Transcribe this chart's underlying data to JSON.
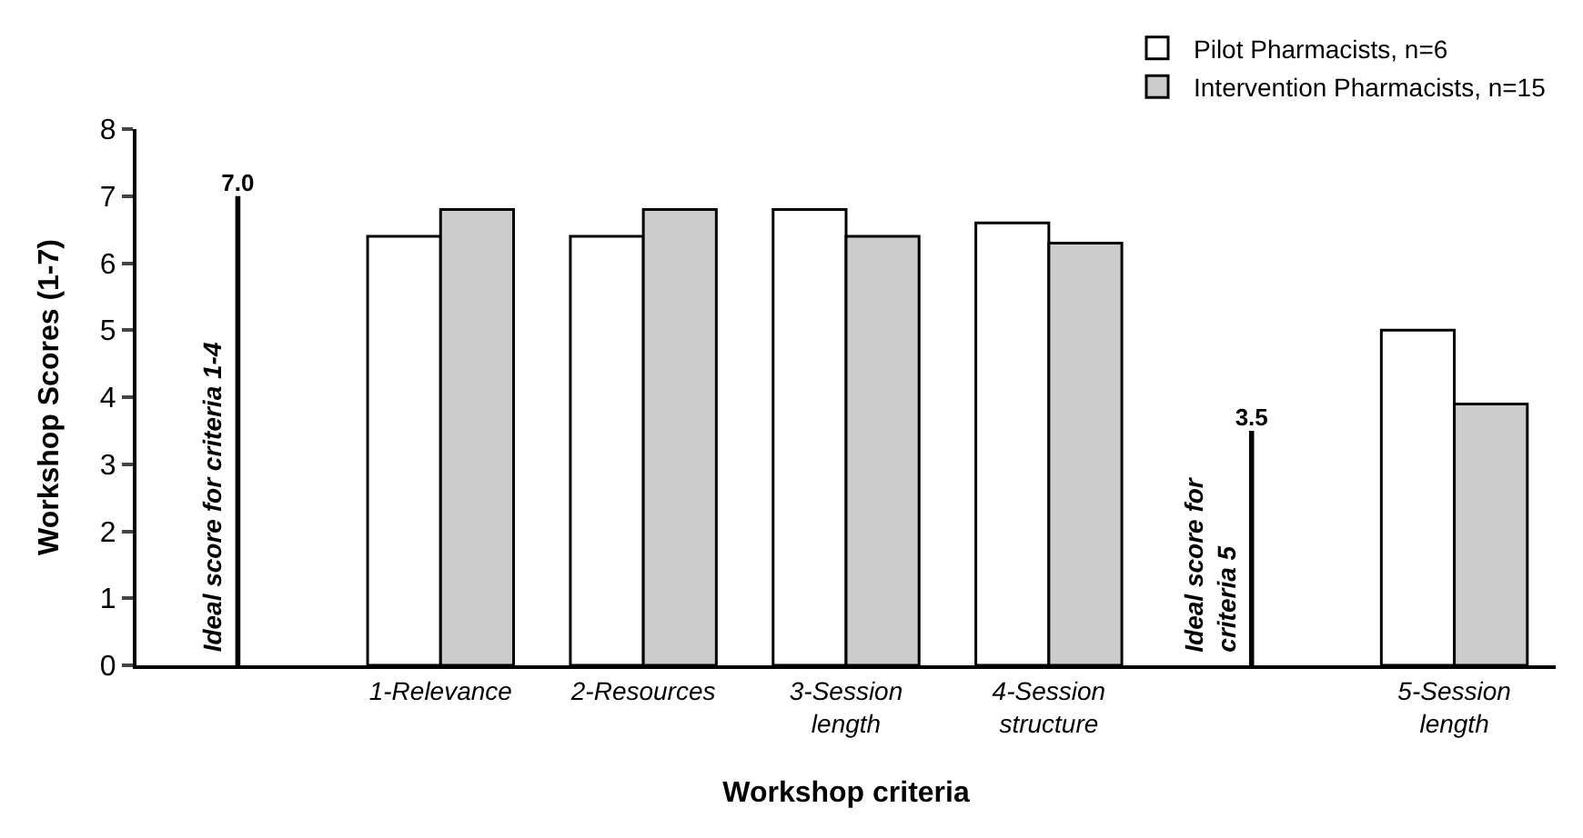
{
  "chart_data": {
    "type": "bar",
    "xlabel": "Workshop criteria",
    "ylabel": "Workshop Scores (1-7)",
    "categories": [
      null,
      "1-Relevance",
      "2-Resources",
      "3-Session length",
      "4-Session structure",
      null,
      "5-Session length"
    ],
    "series": [
      {
        "name": "Pilot Pharmacists, n=6",
        "color": "#ffffff",
        "values": [
          null,
          6.4,
          6.4,
          6.8,
          6.6,
          null,
          5.0
        ]
      },
      {
        "name": "Intervention Pharmacists, n=15",
        "color": "#cccccc",
        "values": [
          null,
          6.8,
          6.8,
          6.4,
          6.3,
          null,
          3.9
        ]
      },
      {
        "color": "#000000",
        "values": [
          7.0,
          null,
          null,
          null,
          null,
          3.5,
          null
        ],
        "value_labels": [
          "7.0",
          null,
          null,
          null,
          null,
          "3.5",
          null
        ]
      }
    ],
    "annotations": [
      "Ideal score for criteria 1-4",
      "Ideal score for criteria 5"
    ],
    "ylim": [
      0,
      8
    ],
    "yticks": [
      0,
      1,
      2,
      3,
      4,
      5,
      6,
      7,
      8
    ],
    "grid": false,
    "legend": "top right"
  }
}
